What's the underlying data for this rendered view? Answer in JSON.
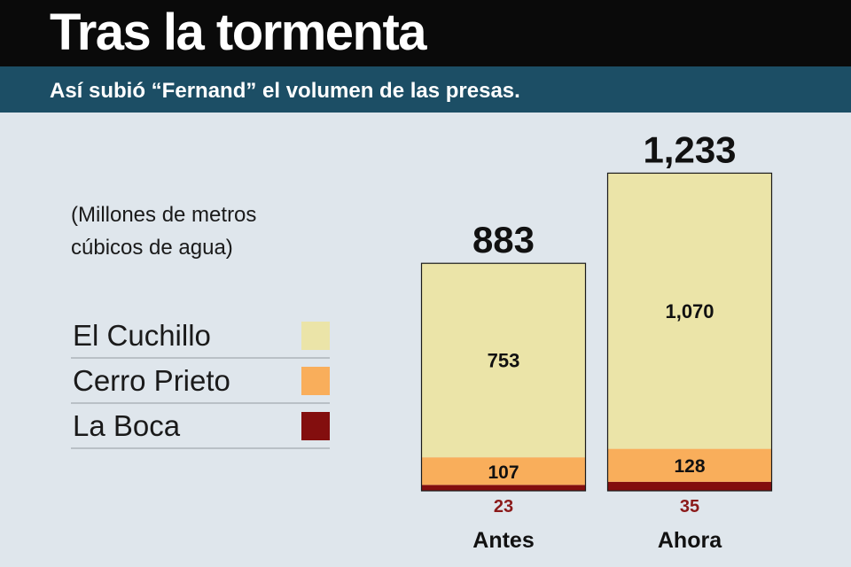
{
  "header": {
    "title": "Tras la tormenta",
    "subtitle": "Así subió “Fernand” el volumen de las presas."
  },
  "units_label": "(Millones de metros cúbicos de agua)",
  "colors": {
    "El Cuchillo": "#ebe4a8",
    "Cerro Prieto": "#f9ae5b",
    "La Boca": "#830e0e",
    "background": "#dfe6ec",
    "title_bar": "#0a0a0a",
    "subtitle_bar": "#1c4e65"
  },
  "legend": [
    {
      "label": "El Cuchillo",
      "color": "#ebe4a8"
    },
    {
      "label": "Cerro Prieto",
      "color": "#f9ae5b"
    },
    {
      "label": "La Boca",
      "color": "#830e0e"
    }
  ],
  "chart_data": {
    "type": "bar",
    "stacked": true,
    "categories": [
      "Antes",
      "Ahora"
    ],
    "series": [
      {
        "name": "La Boca",
        "values": [
          23,
          35
        ],
        "labels": [
          "23",
          "35"
        ],
        "color": "#830e0e"
      },
      {
        "name": "Cerro Prieto",
        "values": [
          107,
          128
        ],
        "labels": [
          "107",
          "128"
        ],
        "color": "#f9ae5b"
      },
      {
        "name": "El Cuchillo",
        "values": [
          753,
          1070
        ],
        "labels": [
          "753",
          "1,070"
        ],
        "color": "#ebe4a8"
      }
    ],
    "totals": [
      883,
      1233
    ],
    "total_labels": [
      "883",
      "1,233"
    ],
    "title": "",
    "xlabel": "",
    "ylabel": "",
    "legend_position": "left",
    "grid": false
  }
}
